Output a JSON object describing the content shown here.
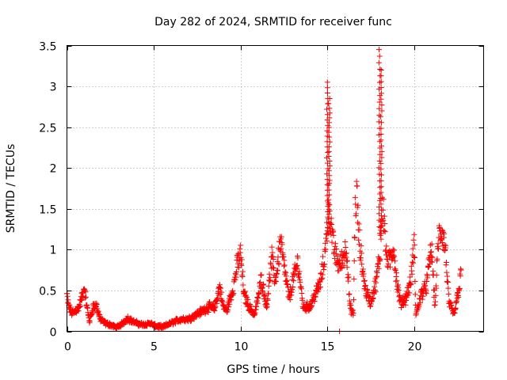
{
  "chart_data": {
    "type": "scatter",
    "title": "Day 282 of 2024, SRMTID for receiver func",
    "xlabel": "GPS time / hours",
    "ylabel": "SRMTID / TECUs",
    "xlim": [
      0,
      24
    ],
    "ylim": [
      0,
      3.5
    ],
    "x_ticks": [
      0,
      5,
      10,
      15,
      20
    ],
    "x_tick_labels": [
      "0",
      "5",
      "10",
      "15",
      "20"
    ],
    "y_ticks": [
      0,
      0.5,
      1,
      1.5,
      2,
      2.5,
      3,
      3.5
    ],
    "y_tick_labels": [
      "0",
      "0.5",
      "1",
      "1.5",
      "2",
      "2.5",
      "3",
      "3.5"
    ],
    "grid": true,
    "marker": "+",
    "series": [
      {
        "name": "SRMTID",
        "color": "#ff0000",
        "anchors": [
          [
            0.0,
            0.45
          ],
          [
            0.1,
            0.3
          ],
          [
            0.3,
            0.22
          ],
          [
            0.5,
            0.25
          ],
          [
            0.7,
            0.3
          ],
          [
            0.9,
            0.45
          ],
          [
            1.0,
            0.55
          ],
          [
            1.15,
            0.3
          ],
          [
            1.3,
            0.12
          ],
          [
            1.5,
            0.3
          ],
          [
            1.7,
            0.32
          ],
          [
            1.9,
            0.15
          ],
          [
            2.2,
            0.1
          ],
          [
            2.5,
            0.08
          ],
          [
            2.8,
            0.05
          ],
          [
            3.0,
            0.06
          ],
          [
            3.3,
            0.12
          ],
          [
            3.5,
            0.16
          ],
          [
            3.8,
            0.12
          ],
          [
            4.0,
            0.1
          ],
          [
            4.4,
            0.08
          ],
          [
            4.8,
            0.1
          ],
          [
            5.0,
            0.07
          ],
          [
            5.5,
            0.05
          ],
          [
            5.8,
            0.08
          ],
          [
            6.2,
            0.12
          ],
          [
            6.6,
            0.15
          ],
          [
            7.0,
            0.15
          ],
          [
            7.4,
            0.2
          ],
          [
            7.8,
            0.25
          ],
          [
            8.2,
            0.3
          ],
          [
            8.5,
            0.28
          ],
          [
            8.8,
            0.55
          ],
          [
            9.0,
            0.3
          ],
          [
            9.2,
            0.25
          ],
          [
            9.4,
            0.4
          ],
          [
            9.6,
            0.55
          ],
          [
            9.8,
            0.8
          ],
          [
            10.0,
            0.95
          ],
          [
            10.2,
            0.45
          ],
          [
            10.5,
            0.3
          ],
          [
            10.8,
            0.2
          ],
          [
            11.0,
            0.4
          ],
          [
            11.2,
            0.65
          ],
          [
            11.5,
            0.3
          ],
          [
            11.8,
            0.9
          ],
          [
            12.0,
            0.6
          ],
          [
            12.3,
            1.1
          ],
          [
            12.5,
            0.8
          ],
          [
            12.8,
            0.4
          ],
          [
            13.0,
            0.6
          ],
          [
            13.3,
            0.85
          ],
          [
            13.6,
            0.3
          ],
          [
            14.0,
            0.3
          ],
          [
            14.3,
            0.45
          ],
          [
            14.6,
            0.6
          ],
          [
            14.9,
            1.0
          ],
          [
            15.0,
            1.3
          ],
          [
            15.1,
            1.6
          ],
          [
            15.3,
            1.1
          ],
          [
            15.5,
            0.9
          ],
          [
            15.7,
            0.8
          ],
          [
            15.9,
            0.9
          ],
          [
            16.1,
            1.05
          ],
          [
            16.3,
            0.3
          ],
          [
            16.5,
            0.2
          ],
          [
            16.6,
            1.5
          ],
          [
            16.7,
            1.7
          ],
          [
            16.8,
            1.2
          ],
          [
            17.0,
            0.8
          ],
          [
            17.2,
            0.5
          ],
          [
            17.5,
            0.35
          ],
          [
            17.8,
            0.6
          ],
          [
            18.0,
            0.9
          ],
          [
            18.2,
            1.6
          ],
          [
            18.4,
            0.9
          ],
          [
            18.6,
            0.85
          ],
          [
            18.8,
            1.05
          ],
          [
            19.0,
            0.6
          ],
          [
            19.2,
            0.35
          ],
          [
            19.5,
            0.4
          ],
          [
            19.8,
            0.6
          ],
          [
            20.0,
            1.1
          ],
          [
            20.1,
            0.2
          ],
          [
            20.4,
            0.45
          ],
          [
            20.7,
            0.55
          ],
          [
            20.9,
            0.9
          ],
          [
            21.0,
            1.0
          ],
          [
            21.2,
            0.3
          ],
          [
            21.4,
            1.15
          ],
          [
            21.6,
            1.25
          ],
          [
            21.8,
            1.0
          ],
          [
            22.0,
            0.35
          ],
          [
            22.3,
            0.2
          ],
          [
            22.6,
            0.55
          ],
          [
            22.7,
            0.75
          ]
        ],
        "spikes": [
          {
            "x": 15.0,
            "from": 1.2,
            "to": 3.05
          },
          {
            "x": 15.1,
            "from": 1.2,
            "to": 2.85
          },
          {
            "x": 18.0,
            "from": 1.2,
            "to": 3.45
          },
          {
            "x": 18.1,
            "from": 1.2,
            "to": 3.2
          }
        ],
        "outliers": [
          [
            15.7,
            0.0
          ]
        ]
      }
    ]
  }
}
